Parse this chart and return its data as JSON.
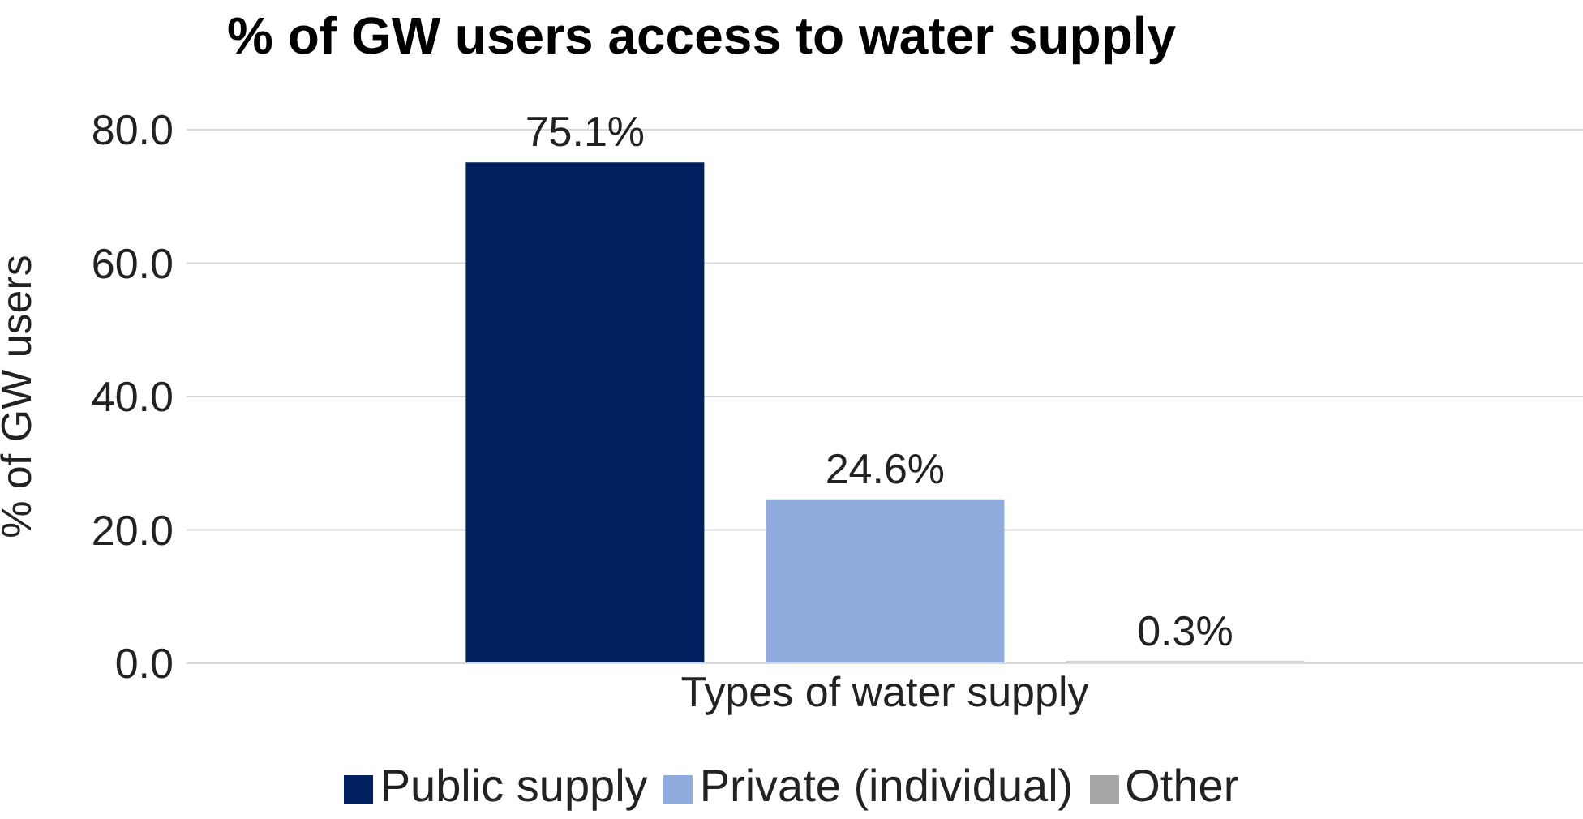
{
  "chart_data": {
    "type": "bar",
    "title": "% of GW users access to water supply",
    "ylabel": "% of GW users",
    "categories": [
      "Types of water supply"
    ],
    "series": [
      {
        "name": "Public supply",
        "color": "#002060",
        "values": [
          75.1
        ],
        "value_labels": [
          "75.1%"
        ]
      },
      {
        "name": "Private (individual)",
        "color": "#8faadc",
        "values": [
          24.6
        ],
        "value_labels": [
          "24.6%"
        ]
      },
      {
        "name": "Other",
        "color": "#a6a6a6",
        "values": [
          0.3
        ],
        "value_labels": [
          "0.3%"
        ]
      }
    ],
    "ylim": [
      0,
      80
    ],
    "yticks": [
      {
        "value": 0,
        "label": "0.0"
      },
      {
        "value": 20,
        "label": "20.0"
      },
      {
        "value": 40,
        "label": "40.0"
      },
      {
        "value": 60,
        "label": "60.0"
      },
      {
        "value": 80,
        "label": "80.0"
      }
    ],
    "grid": "y",
    "legend": "bottom"
  }
}
